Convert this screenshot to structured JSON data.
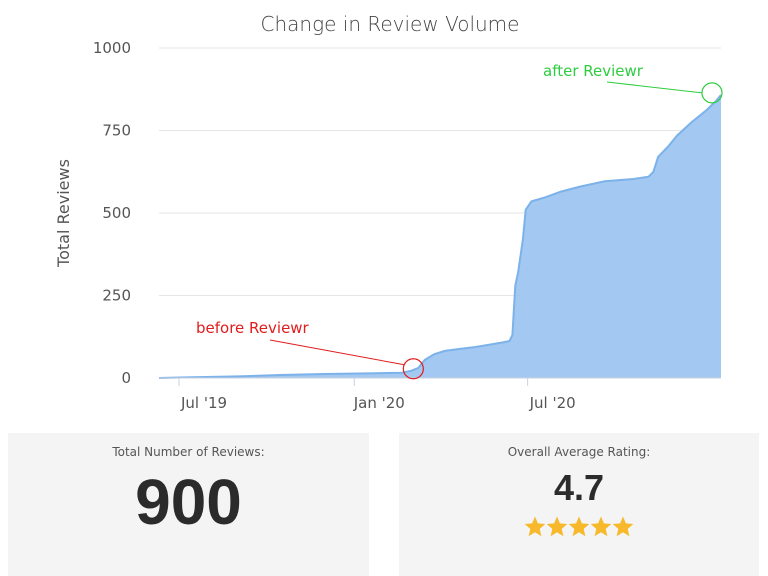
{
  "chart_data": {
    "type": "area",
    "title": "Change in Review Volume",
    "xlabel": "",
    "ylabel": "Total Reviews",
    "ylim": [
      0,
      1000
    ],
    "yticks": [
      0,
      250,
      500,
      750,
      1000
    ],
    "xtick_labels": [
      "Jul '19",
      "Jan '20",
      "Jul '20"
    ],
    "xtick_dates": [
      "2019-07-01",
      "2020-01-01",
      "2020-07-01"
    ],
    "xlim": [
      "2019-06-10",
      "2021-01-20"
    ],
    "grid": "horizontal",
    "color": "#9ec5f0",
    "series": [
      {
        "points": [
          [
            "2019-06-10",
            0
          ],
          [
            "2019-07-15",
            2
          ],
          [
            "2019-09-01",
            5
          ],
          [
            "2019-10-15",
            9
          ],
          [
            "2019-12-01",
            12
          ],
          [
            "2020-01-15",
            14
          ],
          [
            "2020-02-20",
            16
          ],
          [
            "2020-03-01",
            22
          ],
          [
            "2020-03-08",
            30
          ],
          [
            "2020-03-15",
            55
          ],
          [
            "2020-03-25",
            72
          ],
          [
            "2020-04-05",
            82
          ],
          [
            "2020-04-20",
            88
          ],
          [
            "2020-05-05",
            93
          ],
          [
            "2020-05-20",
            100
          ],
          [
            "2020-06-05",
            108
          ],
          [
            "2020-06-12",
            112
          ],
          [
            "2020-06-15",
            130
          ],
          [
            "2020-06-18",
            280
          ],
          [
            "2020-06-21",
            320
          ],
          [
            "2020-06-26",
            420
          ],
          [
            "2020-06-29",
            510
          ],
          [
            "2020-07-05",
            535
          ],
          [
            "2020-07-20",
            548
          ],
          [
            "2020-08-05",
            565
          ],
          [
            "2020-08-25",
            580
          ],
          [
            "2020-09-20",
            596
          ],
          [
            "2020-10-20",
            603
          ],
          [
            "2020-11-05",
            610
          ],
          [
            "2020-11-10",
            625
          ],
          [
            "2020-11-15",
            670
          ],
          [
            "2020-11-25",
            700
          ],
          [
            "2020-12-05",
            735
          ],
          [
            "2020-12-20",
            775
          ],
          [
            "2021-01-05",
            812
          ],
          [
            "2021-01-15",
            840
          ],
          [
            "2021-01-20",
            858
          ]
        ]
      }
    ],
    "annotations": [
      {
        "text": "before Reviewr",
        "date": "2020-03-03",
        "value": 28,
        "color": "#e11d1d"
      },
      {
        "text": "after Reviewr",
        "date": "2021-01-20",
        "value": 858,
        "color": "#2ecc40"
      }
    ]
  },
  "cards": {
    "total_label": "Total Number of Reviews:",
    "total_value": "900",
    "rating_label": "Overall Average Rating:",
    "rating_value": "4.7",
    "stars": 5,
    "star_color": "#f7b92b"
  }
}
